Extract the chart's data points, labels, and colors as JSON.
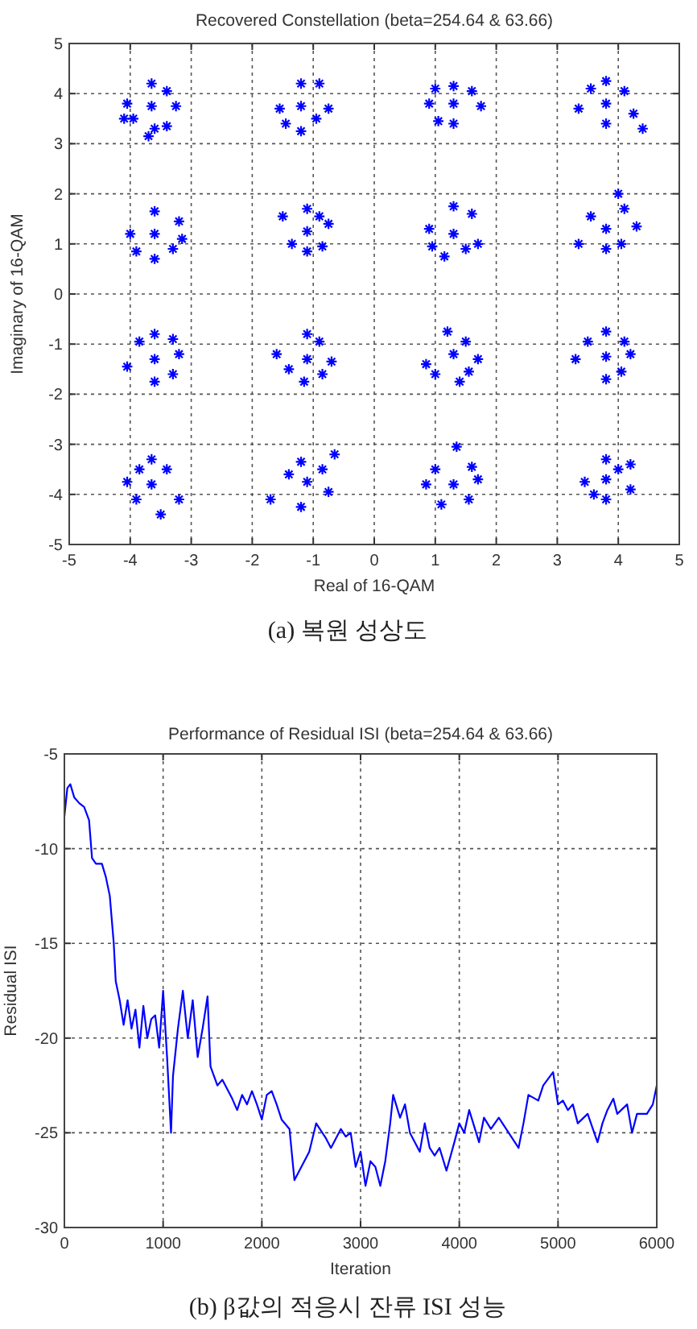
{
  "chart_data": [
    {
      "type": "scatter",
      "title": "Recovered Constellation (beta=254.64 & 63.66)",
      "xlabel": "Real of 16-QAM",
      "ylabel": "Imaginary of 16-QAM",
      "color": "#0000ff",
      "marker": "cross",
      "grid": true,
      "xlim": [
        -5,
        5
      ],
      "ylim": [
        -5,
        5
      ],
      "xticks": [
        -5,
        -4,
        -3,
        -2,
        -1,
        0,
        1,
        2,
        3,
        4,
        5
      ],
      "yticks": [
        -5,
        -4,
        -3,
        -2,
        -1,
        0,
        1,
        2,
        3,
        4,
        5
      ],
      "x": [
        -3.65,
        -4.05,
        -3.25,
        -3.65,
        -3.6,
        -3.4,
        -3.95,
        -3.4,
        -4.1,
        -3.7,
        -1.2,
        -1.55,
        -0.75,
        -1.2,
        -1.2,
        -0.9,
        -1.45,
        -0.95,
        1.3,
        0.9,
        1.75,
        1.3,
        1.3,
        1.0,
        1.6,
        1.05,
        3.8,
        3.35,
        4.25,
        3.8,
        3.8,
        4.4,
        3.55,
        4.1,
        -3.6,
        -4.0,
        -3.15,
        -3.6,
        -3.6,
        -3.2,
        -3.9,
        -3.3,
        -1.1,
        -1.5,
        -0.75,
        -1.1,
        -1.1,
        -0.85,
        -1.35,
        -0.9,
        1.3,
        0.9,
        1.7,
        1.3,
        1.15,
        1.6,
        0.95,
        1.5,
        3.8,
        3.35,
        4.3,
        4.0,
        3.8,
        4.1,
        3.55,
        4.05,
        -3.6,
        -4.05,
        -3.2,
        -3.6,
        -3.6,
        -3.3,
        -3.85,
        -3.3,
        -1.1,
        -1.6,
        -0.7,
        -1.1,
        -1.15,
        -0.85,
        -1.4,
        -0.9,
        1.3,
        0.85,
        1.7,
        1.2,
        1.4,
        1.0,
        1.5,
        1.55,
        3.8,
        3.3,
        4.2,
        3.8,
        3.8,
        3.5,
        4.05,
        4.1,
        -3.65,
        -4.05,
        -3.2,
        -3.65,
        -3.5,
        -3.9,
        -3.4,
        -3.85,
        -1.1,
        -1.7,
        -0.65,
        -1.2,
        -1.2,
        -0.75,
        -1.4,
        -0.85,
        1.3,
        0.85,
        1.7,
        1.35,
        1.1,
        1.55,
        1.0,
        1.6,
        3.8,
        3.45,
        4.2,
        3.8,
        3.8,
        4.2,
        3.6,
        4.0
      ],
      "values": [
        3.75,
        3.8,
        3.75,
        4.2,
        3.3,
        4.05,
        3.5,
        3.35,
        3.5,
        3.15,
        3.75,
        3.7,
        3.7,
        4.2,
        3.25,
        4.2,
        3.4,
        3.5,
        3.8,
        3.8,
        3.75,
        4.15,
        3.4,
        4.1,
        4.05,
        3.45,
        3.8,
        3.7,
        3.6,
        4.25,
        3.4,
        3.3,
        4.1,
        4.05,
        1.2,
        1.2,
        1.1,
        1.65,
        0.7,
        1.45,
        0.85,
        0.9,
        1.25,
        1.55,
        1.4,
        1.7,
        0.85,
        0.95,
        1.0,
        1.55,
        1.2,
        1.3,
        1.0,
        1.75,
        0.75,
        1.6,
        0.95,
        0.9,
        1.3,
        1.0,
        1.35,
        2.0,
        0.9,
        1.7,
        1.55,
        1.0,
        -1.3,
        -1.45,
        -1.2,
        -0.8,
        -1.75,
        -1.6,
        -0.95,
        -0.9,
        -1.3,
        -1.2,
        -1.35,
        -0.8,
        -1.75,
        -1.6,
        -1.5,
        -0.95,
        -1.2,
        -1.4,
        -1.3,
        -0.75,
        -1.75,
        -1.6,
        -0.95,
        -1.55,
        -1.25,
        -1.3,
        -1.2,
        -0.75,
        -1.7,
        -0.95,
        -1.55,
        -0.95,
        -3.8,
        -3.75,
        -4.1,
        -3.3,
        -4.4,
        -4.1,
        -3.5,
        -3.5,
        -3.75,
        -4.1,
        -3.2,
        -3.35,
        -4.25,
        -3.95,
        -3.6,
        -3.5,
        -3.8,
        -3.8,
        -3.7,
        -3.05,
        -4.2,
        -4.1,
        -3.5,
        -3.45,
        -3.7,
        -3.75,
        -3.4,
        -3.3,
        -4.1,
        -3.9,
        -4.0,
        -3.5
      ],
      "annotations": [
        "(a) 복원 성상도"
      ]
    },
    {
      "type": "line",
      "title": "Performance of Residual ISI (beta=254.64 & 63.66)",
      "xlabel": "Iteration",
      "ylabel": "Residual ISI",
      "color": "#0000ff",
      "grid": true,
      "line_style": "solid",
      "xlim": [
        0,
        6000
      ],
      "ylim": [
        -30,
        -5
      ],
      "xticks": [
        0,
        1000,
        2000,
        3000,
        4000,
        5000,
        6000
      ],
      "yticks": [
        -30,
        -25,
        -20,
        -15,
        -10,
        -5
      ],
      "x": [
        0,
        30,
        60,
        100,
        150,
        200,
        250,
        280,
        320,
        380,
        420,
        460,
        500,
        520,
        560,
        600,
        640,
        680,
        720,
        760,
        800,
        840,
        880,
        920,
        960,
        1000,
        1040,
        1080,
        1100,
        1150,
        1200,
        1250,
        1300,
        1350,
        1400,
        1450,
        1480,
        1550,
        1600,
        1700,
        1750,
        1800,
        1850,
        1900,
        1950,
        2000,
        2050,
        2100,
        2150,
        2200,
        2280,
        2330,
        2400,
        2480,
        2550,
        2650,
        2700,
        2800,
        2850,
        2900,
        2950,
        3000,
        3050,
        3100,
        3150,
        3200,
        3250,
        3300,
        3330,
        3400,
        3450,
        3500,
        3550,
        3600,
        3650,
        3700,
        3750,
        3800,
        3870,
        3950,
        4000,
        4050,
        4100,
        4200,
        4250,
        4320,
        4400,
        4500,
        4600,
        4650,
        4700,
        4800,
        4850,
        4950,
        5000,
        5050,
        5100,
        5150,
        5200,
        5300,
        5400,
        5450,
        5500,
        5560,
        5600,
        5700,
        5750,
        5800,
        5900,
        5960,
        6000
      ],
      "values": [
        -8.3,
        -6.8,
        -6.6,
        -7.3,
        -7.6,
        -7.8,
        -8.5,
        -10.5,
        -10.8,
        -10.8,
        -11.5,
        -12.5,
        -15,
        -17,
        -18,
        -19.3,
        -18,
        -19.5,
        -18.5,
        -20.5,
        -18.3,
        -20,
        -19,
        -18.8,
        -20.5,
        -17.5,
        -21,
        -25,
        -22,
        -19.5,
        -17.5,
        -20,
        -18,
        -21,
        -19.5,
        -17.8,
        -21.5,
        -22.5,
        -22.2,
        -23.2,
        -23.8,
        -23,
        -23.5,
        -22.8,
        -23.5,
        -24.3,
        -23,
        -22.8,
        -23.5,
        -24.3,
        -24.8,
        -27.5,
        -26.8,
        -26,
        -24.5,
        -25.3,
        -25.8,
        -24.8,
        -25.2,
        -25,
        -26.8,
        -26,
        -27.8,
        -26.5,
        -26.8,
        -27.8,
        -26.5,
        -24.5,
        -23,
        -24.2,
        -23.5,
        -25,
        -25.5,
        -26,
        -24.5,
        -25.8,
        -26.2,
        -25.8,
        -27,
        -25.5,
        -24.5,
        -25,
        -23.8,
        -25.5,
        -24.2,
        -24.8,
        -24.2,
        -25,
        -25.8,
        -24.5,
        -23,
        -23.3,
        -22.5,
        -21.8,
        -23.5,
        -23.3,
        -23.8,
        -23.5,
        -24.5,
        -24,
        -25.5,
        -24.5,
        -23.8,
        -23.2,
        -24,
        -23.5,
        -25,
        -24,
        -24,
        -23.5,
        -22.5
      ],
      "annotations": [
        "(b) β값의 적응시 잔류 ISI 성능"
      ]
    }
  ]
}
